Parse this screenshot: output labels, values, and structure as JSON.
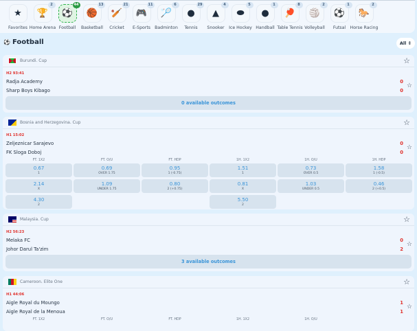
{
  "sports": [
    {
      "label": "Favorites",
      "icon": "star-icon",
      "glyph": "★",
      "count": null
    },
    {
      "label": "Home Arena",
      "icon": "trophy-icon",
      "glyph": "🏆",
      "count": "2"
    },
    {
      "label": "Football",
      "icon": "soccer-ball-icon",
      "glyph": "⚽",
      "count": "44",
      "active": true
    },
    {
      "label": "Basketball",
      "icon": "basketball-icon",
      "glyph": "🏀",
      "count": "13"
    },
    {
      "label": "Cricket",
      "icon": "cricket-icon",
      "glyph": "🏏",
      "count": "21"
    },
    {
      "label": "E-Sports",
      "icon": "gamepad-icon",
      "glyph": "🎮",
      "count": "11"
    },
    {
      "label": "Badminton",
      "icon": "shuttlecock-icon",
      "glyph": "🏸",
      "count": "6"
    },
    {
      "label": "Tennis",
      "icon": "tennis-ball-icon",
      "glyph": "●",
      "count": "29"
    },
    {
      "label": "Snooker",
      "icon": "snooker-icon",
      "glyph": "▲",
      "count": "4"
    },
    {
      "label": "Ice Hockey",
      "icon": "puck-icon",
      "glyph": "⬬",
      "count": "5"
    },
    {
      "label": "Handball",
      "icon": "handball-icon",
      "glyph": "●",
      "count": "1"
    },
    {
      "label": "Table Tennis",
      "icon": "table-tennis-icon",
      "glyph": "🏓",
      "count": "8"
    },
    {
      "label": "Volleyball",
      "icon": "volleyball-icon",
      "glyph": "🏐",
      "count": "2"
    },
    {
      "label": "Futsal",
      "icon": "futsal-ball-icon",
      "glyph": "⚽",
      "count": "1"
    },
    {
      "label": "Horse Racing",
      "icon": "horse-icon",
      "glyph": "🐎",
      "count": "2"
    }
  ],
  "section": {
    "title": "Football",
    "filter": "All"
  },
  "matches": [
    {
      "league": "Burundi. Cup",
      "time": "H2 93:41",
      "home": "Radja Academy",
      "away": "Sharp Boys Kibago",
      "home_score": "0",
      "away_score": "0",
      "outcomes": "0 available outcomes",
      "flag": [
        "#1eb53a",
        "#ce1126",
        "#ffffff"
      ]
    },
    {
      "league": "Bosnia and Herzegovina. Cup",
      "time": "H1 15:02",
      "home": "Zeljeznicar Sarajevo",
      "away": "FK Sloga Doboj",
      "home_score": "0",
      "away_score": "0",
      "flag": [
        "#002395",
        "#fecb00"
      ],
      "markets": [
        {
          "name": "FT. 1X2",
          "odds": [
            {
              "v": "0.67",
              "s": "1"
            },
            {
              "v": "2.14",
              "s": "X"
            },
            {
              "v": "4.30",
              "s": "2"
            }
          ]
        },
        {
          "name": "FT. O/U",
          "odds": [
            {
              "v": "0.69",
              "s": "OVER 1.75"
            },
            {
              "v": "1.09",
              "s": "UNDER 1.75"
            }
          ]
        },
        {
          "name": "FT. HDP",
          "odds": [
            {
              "v": "0.95",
              "s": "1 (-0.75)"
            },
            {
              "v": "0.80",
              "s": "2 (+0.75)"
            }
          ]
        },
        {
          "name": "1H. 1X2",
          "odds": [
            {
              "v": "1.51",
              "s": "1"
            },
            {
              "v": "0.81",
              "s": "X"
            },
            {
              "v": "5.50",
              "s": "2"
            }
          ]
        },
        {
          "name": "1H. O/U",
          "odds": [
            {
              "v": "0.73",
              "s": "OVER 0.5"
            },
            {
              "v": "1.03",
              "s": "UNDER 0.5"
            }
          ]
        },
        {
          "name": "1H. HDP",
          "odds": [
            {
              "v": "1.58",
              "s": "1 (-0.5)"
            },
            {
              "v": "0.46",
              "s": "2 (+0.5)"
            }
          ]
        }
      ]
    },
    {
      "league": "Malaysia. Cup",
      "time": "H2 56:23",
      "home": "Melaka FC",
      "away": "Johor Darul Ta'zim",
      "home_score": "0",
      "away_score": "2",
      "outcomes": "3 available outcomes",
      "flag": [
        "#cc0001",
        "#010066",
        "#ffcc00"
      ]
    },
    {
      "league": "Cameroon. Elite One",
      "time": "H1 44:06",
      "home": "Aigle Royal du Moungo",
      "away": "Aigle Royal de la Menoua",
      "home_score": "1",
      "away_score": "1",
      "flag": [
        "#007a5e",
        "#ce1126",
        "#fcd116"
      ],
      "markets": [
        {
          "name": "FT. 1X2"
        },
        {
          "name": "FT. O/U"
        },
        {
          "name": "FT. HDP"
        },
        {
          "name": "1H. 1X2"
        },
        {
          "name": "1H. O/U"
        }
      ]
    }
  ]
}
